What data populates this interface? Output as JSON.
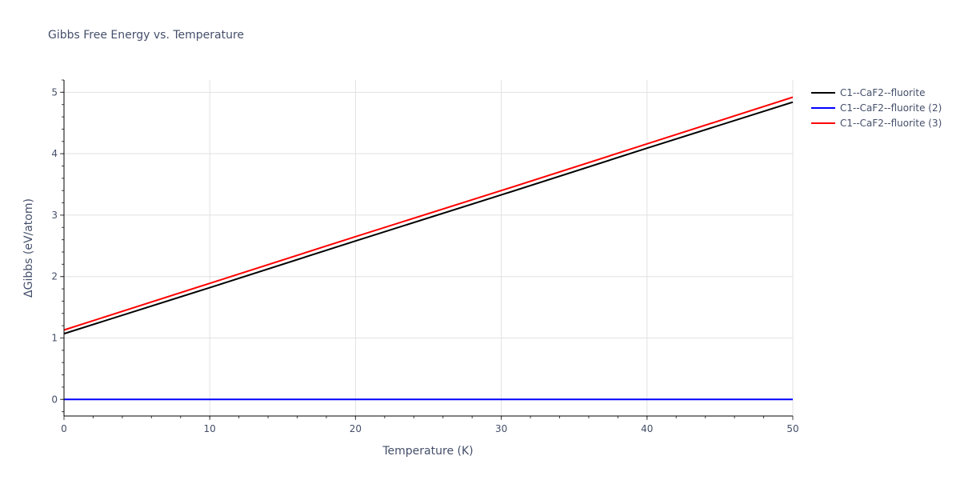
{
  "chart_data": {
    "type": "line",
    "title": "Gibbs Free Energy vs. Temperature",
    "xlabel": "Temperature (K)",
    "ylabel": "ΔGibbs (eV/atom)",
    "xlim": [
      0,
      50
    ],
    "ylim": [
      -0.27,
      5.2
    ],
    "x_ticks": [
      0,
      10,
      20,
      30,
      40,
      50
    ],
    "y_ticks": [
      0,
      1,
      2,
      3,
      4,
      5
    ],
    "grid": true,
    "legend_position": "right-top",
    "x": [
      0,
      10,
      20,
      30,
      40,
      50
    ],
    "series": [
      {
        "name": "C1--CaF2--fluorite",
        "color": "#000000",
        "values": [
          1.07,
          1.82,
          2.58,
          3.33,
          4.09,
          4.84
        ]
      },
      {
        "name": "C1--CaF2--fluorite (2)",
        "color": "#0000ff",
        "values": [
          0,
          0,
          0,
          0,
          0,
          0
        ]
      },
      {
        "name": "C1--CaF2--fluorite (3)",
        "color": "#ff0000",
        "values": [
          1.13,
          1.89,
          2.65,
          3.4,
          4.16,
          4.92
        ]
      }
    ]
  }
}
